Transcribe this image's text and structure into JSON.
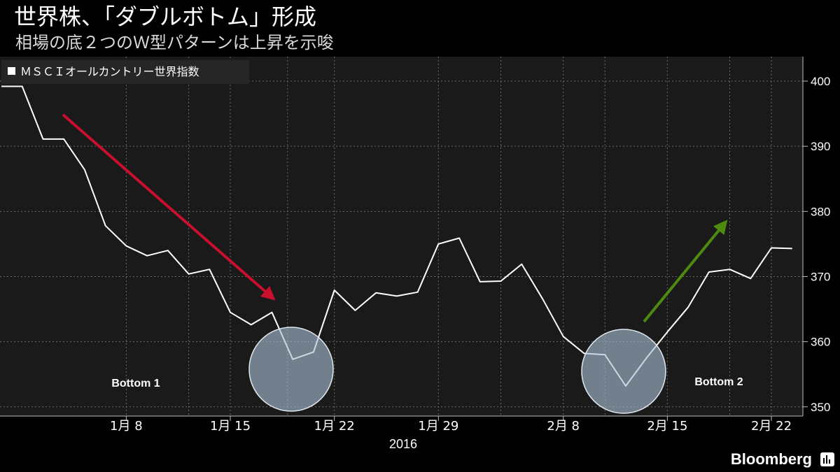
{
  "header": {
    "title": "世界株、「ダブルボトム」形成",
    "subtitle": "相場の底２つのＷ型パターンは上昇を示唆"
  },
  "legend": {
    "label": "ＭＳＣＩオールカントリー世界指数"
  },
  "annotations": {
    "bottom1": "Bottom 1",
    "bottom2": "Bottom 2"
  },
  "brand": {
    "name": "Bloomberg",
    "icon": "bloomberg-bars-icon"
  },
  "colors": {
    "background": "#000000",
    "plot_background": "#1a1a1a",
    "line": "#ffffff",
    "down_arrow": "#c8102e",
    "up_arrow": "#4d8a10",
    "circle_fill": "#a9bfd4"
  },
  "chart_data": {
    "type": "line",
    "title": "世界株、「ダブルボトム」形成",
    "subtitle": "相場の底２つのＷ型パターンは上昇を示唆",
    "xlabel": "2016",
    "ylabel": "",
    "ylim": [
      348,
      403.5
    ],
    "yticks": [
      350,
      360,
      370,
      380,
      390,
      400
    ],
    "y_axis_position": "right",
    "grid": true,
    "legend_position": "top-left",
    "x_ticks": [
      {
        "label": "1月 8",
        "index": 6
      },
      {
        "label": "1月 15",
        "index": 11
      },
      {
        "label": "1月 22",
        "index": 16
      },
      {
        "label": "1月 29",
        "index": 21
      },
      {
        "label": "2月 8",
        "index": 27
      },
      {
        "label": "2月 15",
        "index": 32
      },
      {
        "label": "2月 22",
        "index": 37
      }
    ],
    "series": [
      {
        "name": "ＭＳＣＩオールカントリー世界指数",
        "values": [
          399.2,
          399.2,
          391.1,
          391.1,
          386.4,
          377.8,
          374.7,
          373.2,
          374.0,
          370.4,
          371.1,
          364.5,
          362.6,
          364.5,
          357.3,
          358.4,
          367.9,
          364.8,
          367.5,
          367.0,
          367.6,
          375.0,
          375.9,
          369.2,
          369.3,
          371.9,
          366.6,
          360.8,
          358.2,
          358.0,
          353.2,
          357.5,
          361.5,
          365.3,
          370.7,
          371.1,
          369.7,
          374.4,
          374.3
        ]
      }
    ],
    "markers": [
      {
        "type": "arrow",
        "direction": "down",
        "color": "#c8102e"
      },
      {
        "type": "arrow",
        "direction": "up",
        "color": "#4d8a10"
      },
      {
        "type": "circle",
        "label": "Bottom 1",
        "at_index": 14
      },
      {
        "type": "circle",
        "label": "Bottom 2",
        "at_index": 30
      }
    ]
  }
}
